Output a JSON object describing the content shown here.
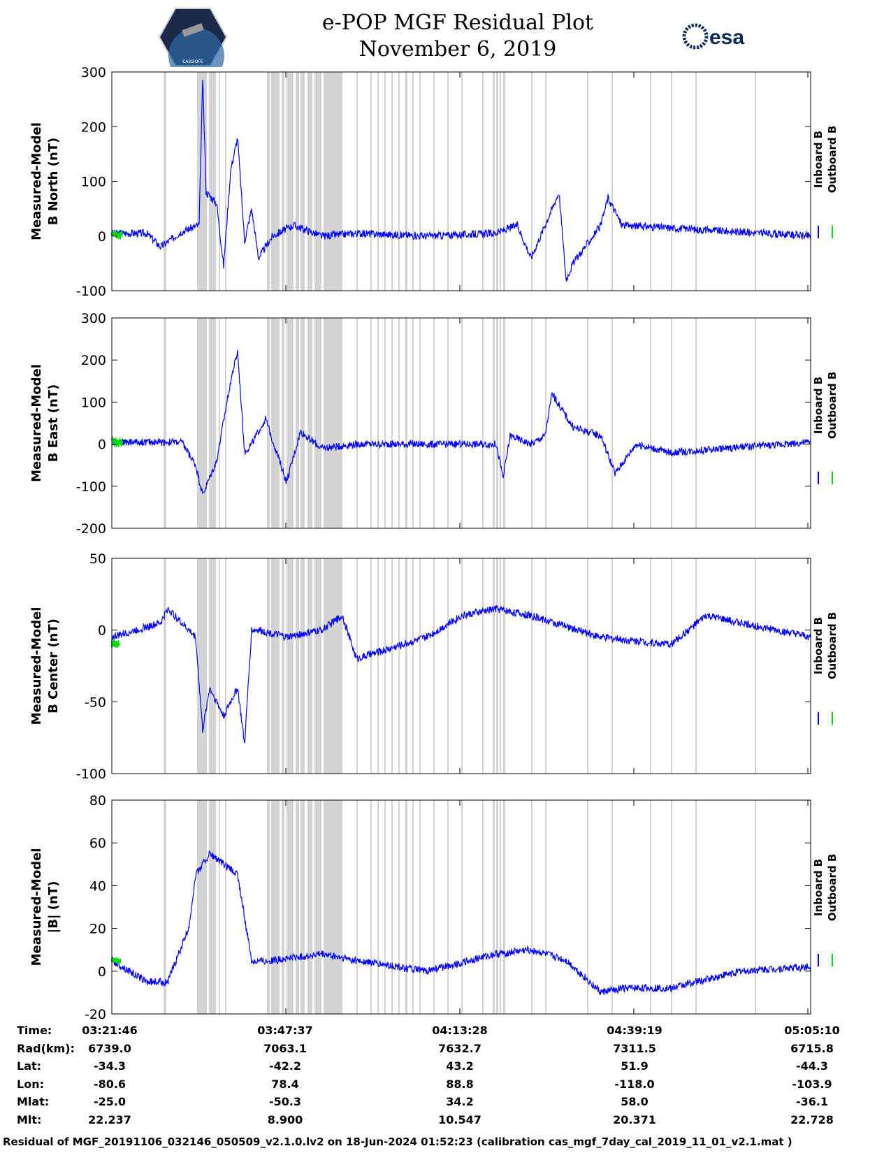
{
  "header": {
    "title": "e-POP MGF Residual Plot",
    "date": "November 6, 2019",
    "esa_logo_text": "esa",
    "mission_logo_text": "CASSIOPE"
  },
  "chart_data": [
    {
      "type": "line",
      "ylabel": [
        "Measured-Model",
        "B North (nT)"
      ],
      "ylim": [
        -100,
        300
      ],
      "yticks": [
        "300",
        "200",
        "100",
        "0",
        "-100"
      ],
      "series": [
        {
          "name": "Inboard B",
          "color": "#0000ff",
          "x": [
            0,
            0.05,
            0.07,
            0.1,
            0.125,
            0.13,
            0.135,
            0.15,
            0.16,
            0.17,
            0.18,
            0.19,
            0.2,
            0.21,
            0.23,
            0.26,
            0.3,
            0.35,
            0.45,
            0.55,
            0.58,
            0.6,
            0.64,
            0.65,
            0.66,
            0.7,
            0.71,
            0.73,
            1.0
          ],
          "values": [
            5,
            5,
            -20,
            8,
            20,
            290,
            80,
            60,
            -55,
            120,
            180,
            -10,
            50,
            -40,
            0,
            20,
            0,
            5,
            0,
            5,
            20,
            -40,
            80,
            -80,
            -50,
            20,
            70,
            20,
            0
          ]
        },
        {
          "name": "Outboard B",
          "color": "#00dd00",
          "x": [
            0,
            0.01,
            0.015
          ],
          "values": [
            5,
            0,
            8
          ]
        }
      ],
      "legend": [
        "Inboard B",
        "Outboard B"
      ]
    },
    {
      "type": "line",
      "ylabel": [
        "Measured-Model",
        "B East (nT)"
      ],
      "ylim": [
        -200,
        300
      ],
      "yticks": [
        "300",
        "200",
        "100",
        "0",
        "-100",
        "-200"
      ],
      "series": [
        {
          "name": "Inboard B",
          "color": "#0000ff",
          "x": [
            0,
            0.1,
            0.12,
            0.13,
            0.15,
            0.17,
            0.18,
            0.19,
            0.2,
            0.22,
            0.25,
            0.27,
            0.3,
            0.35,
            0.55,
            0.56,
            0.57,
            0.6,
            0.62,
            0.63,
            0.66,
            0.7,
            0.72,
            0.75,
            0.8,
            1.0
          ],
          "values": [
            5,
            5,
            -50,
            -120,
            -40,
            150,
            220,
            -20,
            0,
            60,
            -90,
            30,
            -10,
            0,
            0,
            -80,
            20,
            0,
            20,
            120,
            40,
            20,
            -70,
            0,
            -20,
            5
          ]
        },
        {
          "name": "Outboard B",
          "color": "#00dd00",
          "x": [
            0,
            0.015
          ],
          "values": [
            5,
            5
          ]
        }
      ],
      "legend": [
        "Inboard B",
        "Outboard B"
      ]
    },
    {
      "type": "line",
      "ylabel": [
        "Measured-Model",
        "B Center (nT)"
      ],
      "ylim": [
        -100,
        50
      ],
      "yticks": [
        "50",
        "0",
        "-50",
        "-100"
      ],
      "series": [
        {
          "name": "Inboard B",
          "color": "#0000ff",
          "x": [
            0,
            0.07,
            0.08,
            0.12,
            0.13,
            0.14,
            0.16,
            0.18,
            0.19,
            0.2,
            0.21,
            0.25,
            0.3,
            0.33,
            0.35,
            0.45,
            0.5,
            0.55,
            0.6,
            0.7,
            0.8,
            0.85,
            0.9,
            1.0
          ],
          "values": [
            -5,
            5,
            15,
            -5,
            -70,
            -40,
            -60,
            -40,
            -80,
            0,
            0,
            -5,
            0,
            10,
            -20,
            -5,
            10,
            15,
            10,
            -5,
            -10,
            10,
            5,
            -5
          ]
        },
        {
          "name": "Outboard B",
          "color": "#00dd00",
          "x": [
            0,
            0.01
          ],
          "values": [
            -10,
            -10
          ]
        }
      ],
      "legend": [
        "Inboard B",
        "Outboard B"
      ]
    },
    {
      "type": "line",
      "ylabel": [
        "Measured-Model",
        "|B| (nT)"
      ],
      "ylim": [
        -20,
        80
      ],
      "yticks": [
        "80",
        "60",
        "40",
        "20",
        "0",
        "-20"
      ],
      "series": [
        {
          "name": "Inboard B",
          "color": "#0000ff",
          "x": [
            0,
            0.05,
            0.08,
            0.11,
            0.12,
            0.14,
            0.18,
            0.2,
            0.23,
            0.3,
            0.35,
            0.45,
            0.55,
            0.6,
            0.65,
            0.7,
            0.73,
            0.8,
            0.9,
            1.0
          ],
          "values": [
            5,
            -5,
            -5,
            20,
            45,
            55,
            45,
            5,
            5,
            8,
            5,
            0,
            8,
            10,
            5,
            -10,
            -8,
            -8,
            0,
            2
          ]
        },
        {
          "name": "Outboard B",
          "color": "#00dd00",
          "x": [
            0,
            0.012
          ],
          "values": [
            5,
            5
          ]
        }
      ],
      "legend": [
        "Inboard B",
        "Outboard B"
      ]
    }
  ],
  "gray_bands": [
    [
      0.074,
      0.078
    ],
    [
      0.122,
      0.136
    ],
    [
      0.139,
      0.149
    ],
    [
      0.153,
      0.155
    ],
    [
      0.162,
      0.164
    ],
    [
      0.222,
      0.226
    ],
    [
      0.228,
      0.24
    ],
    [
      0.243,
      0.247
    ],
    [
      0.25,
      0.26
    ],
    [
      0.263,
      0.268
    ],
    [
      0.27,
      0.276
    ],
    [
      0.28,
      0.287
    ],
    [
      0.29,
      0.3
    ],
    [
      0.303,
      0.33
    ],
    [
      0.35,
      0.351
    ],
    [
      0.37,
      0.371
    ],
    [
      0.38,
      0.381
    ],
    [
      0.39,
      0.392
    ],
    [
      0.4,
      0.402
    ],
    [
      0.41,
      0.412
    ],
    [
      0.42,
      0.423
    ],
    [
      0.43,
      0.432
    ],
    [
      0.44,
      0.441
    ],
    [
      0.46,
      0.461
    ],
    [
      0.48,
      0.481
    ],
    [
      0.5,
      0.501
    ],
    [
      0.53,
      0.532
    ],
    [
      0.545,
      0.548
    ],
    [
      0.55,
      0.553
    ],
    [
      0.555,
      0.557
    ],
    [
      0.56,
      0.563
    ],
    [
      0.6,
      0.601
    ],
    [
      0.62,
      0.621
    ],
    [
      0.68,
      0.681
    ],
    [
      0.715,
      0.716
    ],
    [
      0.77,
      0.771
    ],
    [
      0.8,
      0.801
    ],
    [
      0.835,
      0.836
    ],
    [
      0.92,
      0.921
    ]
  ],
  "x_ticks": [
    "03:21:46",
    "03:47:37",
    "04:13:28",
    "04:39:19",
    "05:05:10"
  ],
  "info_table": {
    "labels": [
      "Time:",
      "Rad(km):",
      "Lat:",
      "Lon:",
      "Mlat:",
      "Mlt:"
    ],
    "columns": [
      [
        "03:21:46",
        "6739.0",
        "-34.3",
        "-80.6",
        "-25.0",
        "22.237"
      ],
      [
        "03:47:37",
        "7063.1",
        "-42.2",
        "78.4",
        "-50.3",
        "8.900"
      ],
      [
        "04:13:28",
        "7632.7",
        "43.2",
        "88.8",
        "34.2",
        "10.547"
      ],
      [
        "04:39:19",
        "7311.5",
        "51.9",
        "-118.0",
        "58.0",
        "20.371"
      ],
      [
        "05:05:10",
        "6715.8",
        "-44.3",
        "-103.9",
        "-36.1",
        "22.728"
      ]
    ]
  },
  "footer": "Residual of MGF_20191106_032146_050509_v2.1.0.lv2 on 18-Jun-2024 01:52:23 (calibration cas_mgf_7day_cal_2019_11_01_v2.1.mat )"
}
